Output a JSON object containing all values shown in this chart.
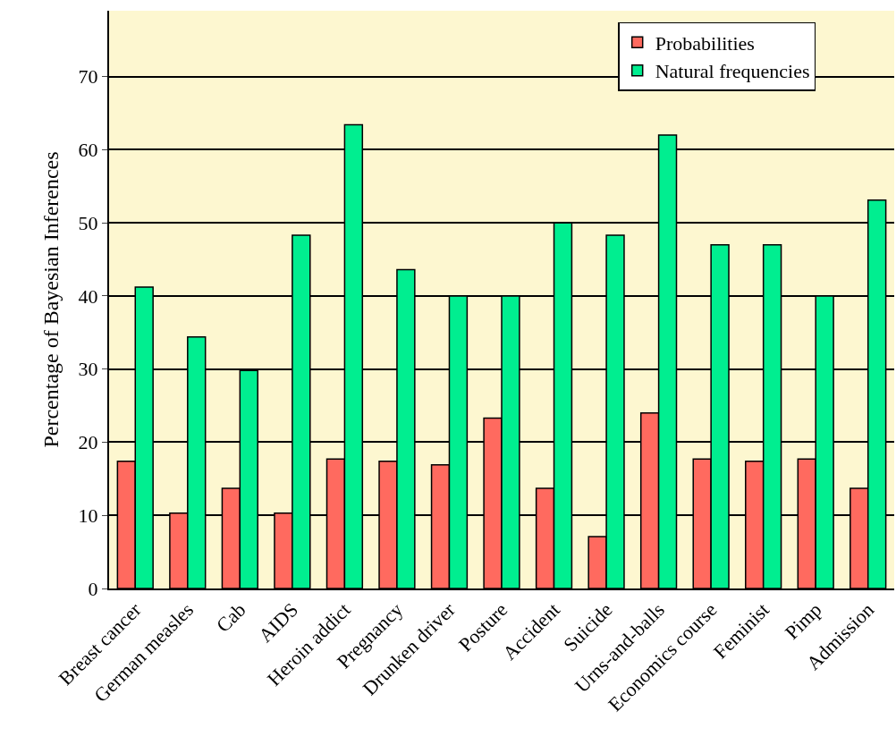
{
  "chart_data": {
    "type": "bar",
    "ylabel": "Percentage of Bayesian Inferences",
    "categories": [
      "Breast cancer",
      "German measles",
      "Cab",
      "AIDS",
      "Heroin addict",
      "Pregnancy",
      "Drunken driver",
      "Posture",
      "Accident",
      "Suicide",
      "Urns-and-balls",
      "Economics course",
      "Feminist",
      "Pimp",
      "Admission"
    ],
    "series": [
      {
        "name": "Probabilities",
        "color": "#ff6a5f",
        "values": [
          17.4,
          10.3,
          13.7,
          10.3,
          17.7,
          17.4,
          16.9,
          23.3,
          13.7,
          7.1,
          24,
          17.7,
          17.4,
          17.7,
          13.7
        ]
      },
      {
        "name": "Natural frequencies",
        "color": "#00ee90",
        "values": [
          41.2,
          34.4,
          29.8,
          48.3,
          63.4,
          43.6,
          40,
          40,
          50,
          48.3,
          62,
          47,
          47,
          40,
          53.1
        ]
      }
    ],
    "ylim": [
      0,
      79
    ],
    "yticks": [
      0,
      10,
      20,
      30,
      40,
      50,
      60,
      70
    ],
    "grid": "y",
    "legend": "top right"
  }
}
